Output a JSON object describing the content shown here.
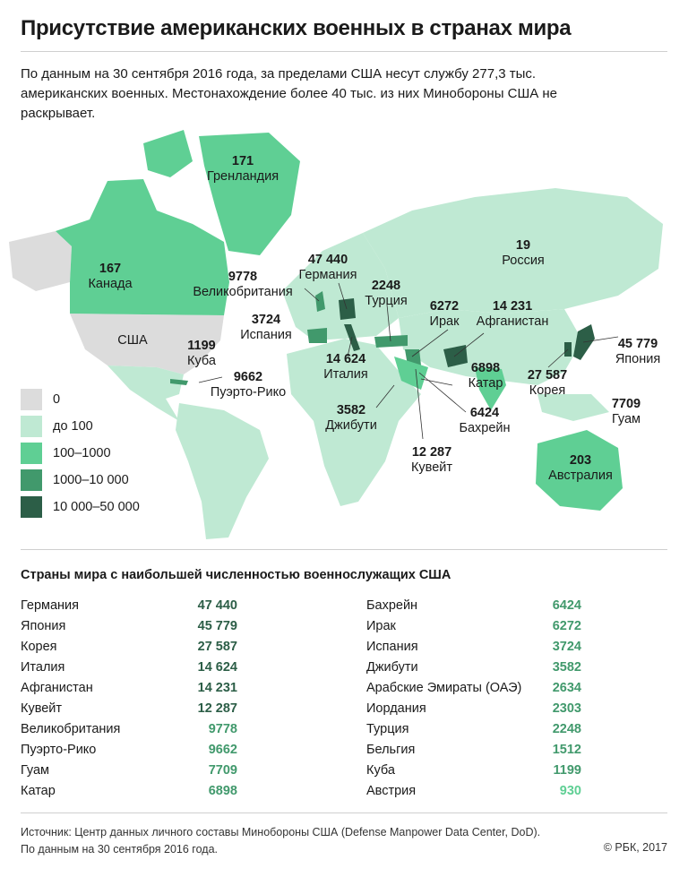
{
  "title": "Присутствие американских военных в странах мира",
  "intro": "По данным на 30 сентября 2016 года, за пределами США несут службу 277,3 тыс. американских военных. Местонахождение более 40 тыс. из них Минобороны США не раскрывает.",
  "colors": {
    "c0": "#dcdcdc",
    "c1": "#bfe9d3",
    "c2": "#5fcf94",
    "c3": "#41996c",
    "c4": "#2c5e47"
  },
  "legend": [
    {
      "label": "0",
      "color": "#dcdcdc"
    },
    {
      "label": "до 100",
      "color": "#bfe9d3"
    },
    {
      "label": "100–1000",
      "color": "#5fcf94"
    },
    {
      "label": "1000–10 000",
      "color": "#41996c"
    },
    {
      "label": "10 000–50 000",
      "color": "#2c5e47"
    }
  ],
  "map_labels": [
    {
      "value": "171",
      "name": "Гренландия"
    },
    {
      "value": "167",
      "name": "Канада"
    },
    {
      "value": "",
      "name": "США"
    },
    {
      "value": "1199",
      "name": "Куба"
    },
    {
      "value": "9662",
      "name": "Пуэрто-Рико"
    },
    {
      "value": "9778",
      "name": "Великобритания"
    },
    {
      "value": "47 440",
      "name": "Германия"
    },
    {
      "value": "3724",
      "name": "Испания"
    },
    {
      "value": "14 624",
      "name": "Италия"
    },
    {
      "value": "2248",
      "name": "Турция"
    },
    {
      "value": "6272",
      "name": "Ирак"
    },
    {
      "value": "14 231",
      "name": "Афганистан"
    },
    {
      "value": "19",
      "name": "Россия"
    },
    {
      "value": "45 779",
      "name": "Япония"
    },
    {
      "value": "27 587",
      "name": "Корея"
    },
    {
      "value": "6898",
      "name": "Катар"
    },
    {
      "value": "6424",
      "name": "Бахрейн"
    },
    {
      "value": "3582",
      "name": "Джибути"
    },
    {
      "value": "12 287",
      "name": "Кувейт"
    },
    {
      "value": "7709",
      "name": "Гуам"
    },
    {
      "value": "203",
      "name": "Австралия"
    }
  ],
  "table_title": "Страны мира с наибольшей численностью военнослужащих США",
  "table_left": [
    {
      "country": "Германия",
      "value": "47 440",
      "color": "#2c5e47"
    },
    {
      "country": "Япония",
      "value": "45 779",
      "color": "#2c5e47"
    },
    {
      "country": "Корея",
      "value": "27 587",
      "color": "#2c5e47"
    },
    {
      "country": "Италия",
      "value": "14 624",
      "color": "#2c5e47"
    },
    {
      "country": "Афганистан",
      "value": "14 231",
      "color": "#2c5e47"
    },
    {
      "country": "Кувейт",
      "value": "12 287",
      "color": "#2c5e47"
    },
    {
      "country": "Великобритания",
      "value": "9778",
      "color": "#41996c"
    },
    {
      "country": "Пуэрто-Рико",
      "value": "9662",
      "color": "#41996c"
    },
    {
      "country": "Гуам",
      "value": "7709",
      "color": "#41996c"
    },
    {
      "country": "Катар",
      "value": "6898",
      "color": "#41996c"
    }
  ],
  "table_right": [
    {
      "country": "Бахрейн",
      "value": "6424",
      "color": "#41996c"
    },
    {
      "country": "Ирак",
      "value": "6272",
      "color": "#41996c"
    },
    {
      "country": "Испания",
      "value": "3724",
      "color": "#41996c"
    },
    {
      "country": "Джибути",
      "value": "3582",
      "color": "#41996c"
    },
    {
      "country": "Арабские Эмираты (ОАЭ)",
      "value": "2634",
      "color": "#41996c"
    },
    {
      "country": "Иордания",
      "value": "2303",
      "color": "#41996c"
    },
    {
      "country": "Турция",
      "value": "2248",
      "color": "#41996c"
    },
    {
      "country": "Бельгия",
      "value": "1512",
      "color": "#41996c"
    },
    {
      "country": "Куба",
      "value": "1199",
      "color": "#41996c"
    },
    {
      "country": "Австрия",
      "value": "930",
      "color": "#5fcf94"
    }
  ],
  "source": "Источник: Центр данных личного составы Минобороны США (Defense Manpower Data Center, DoD).",
  "source_note": "По данным на 30 сентября 2016 года.",
  "copyright": "© РБК, 2017"
}
